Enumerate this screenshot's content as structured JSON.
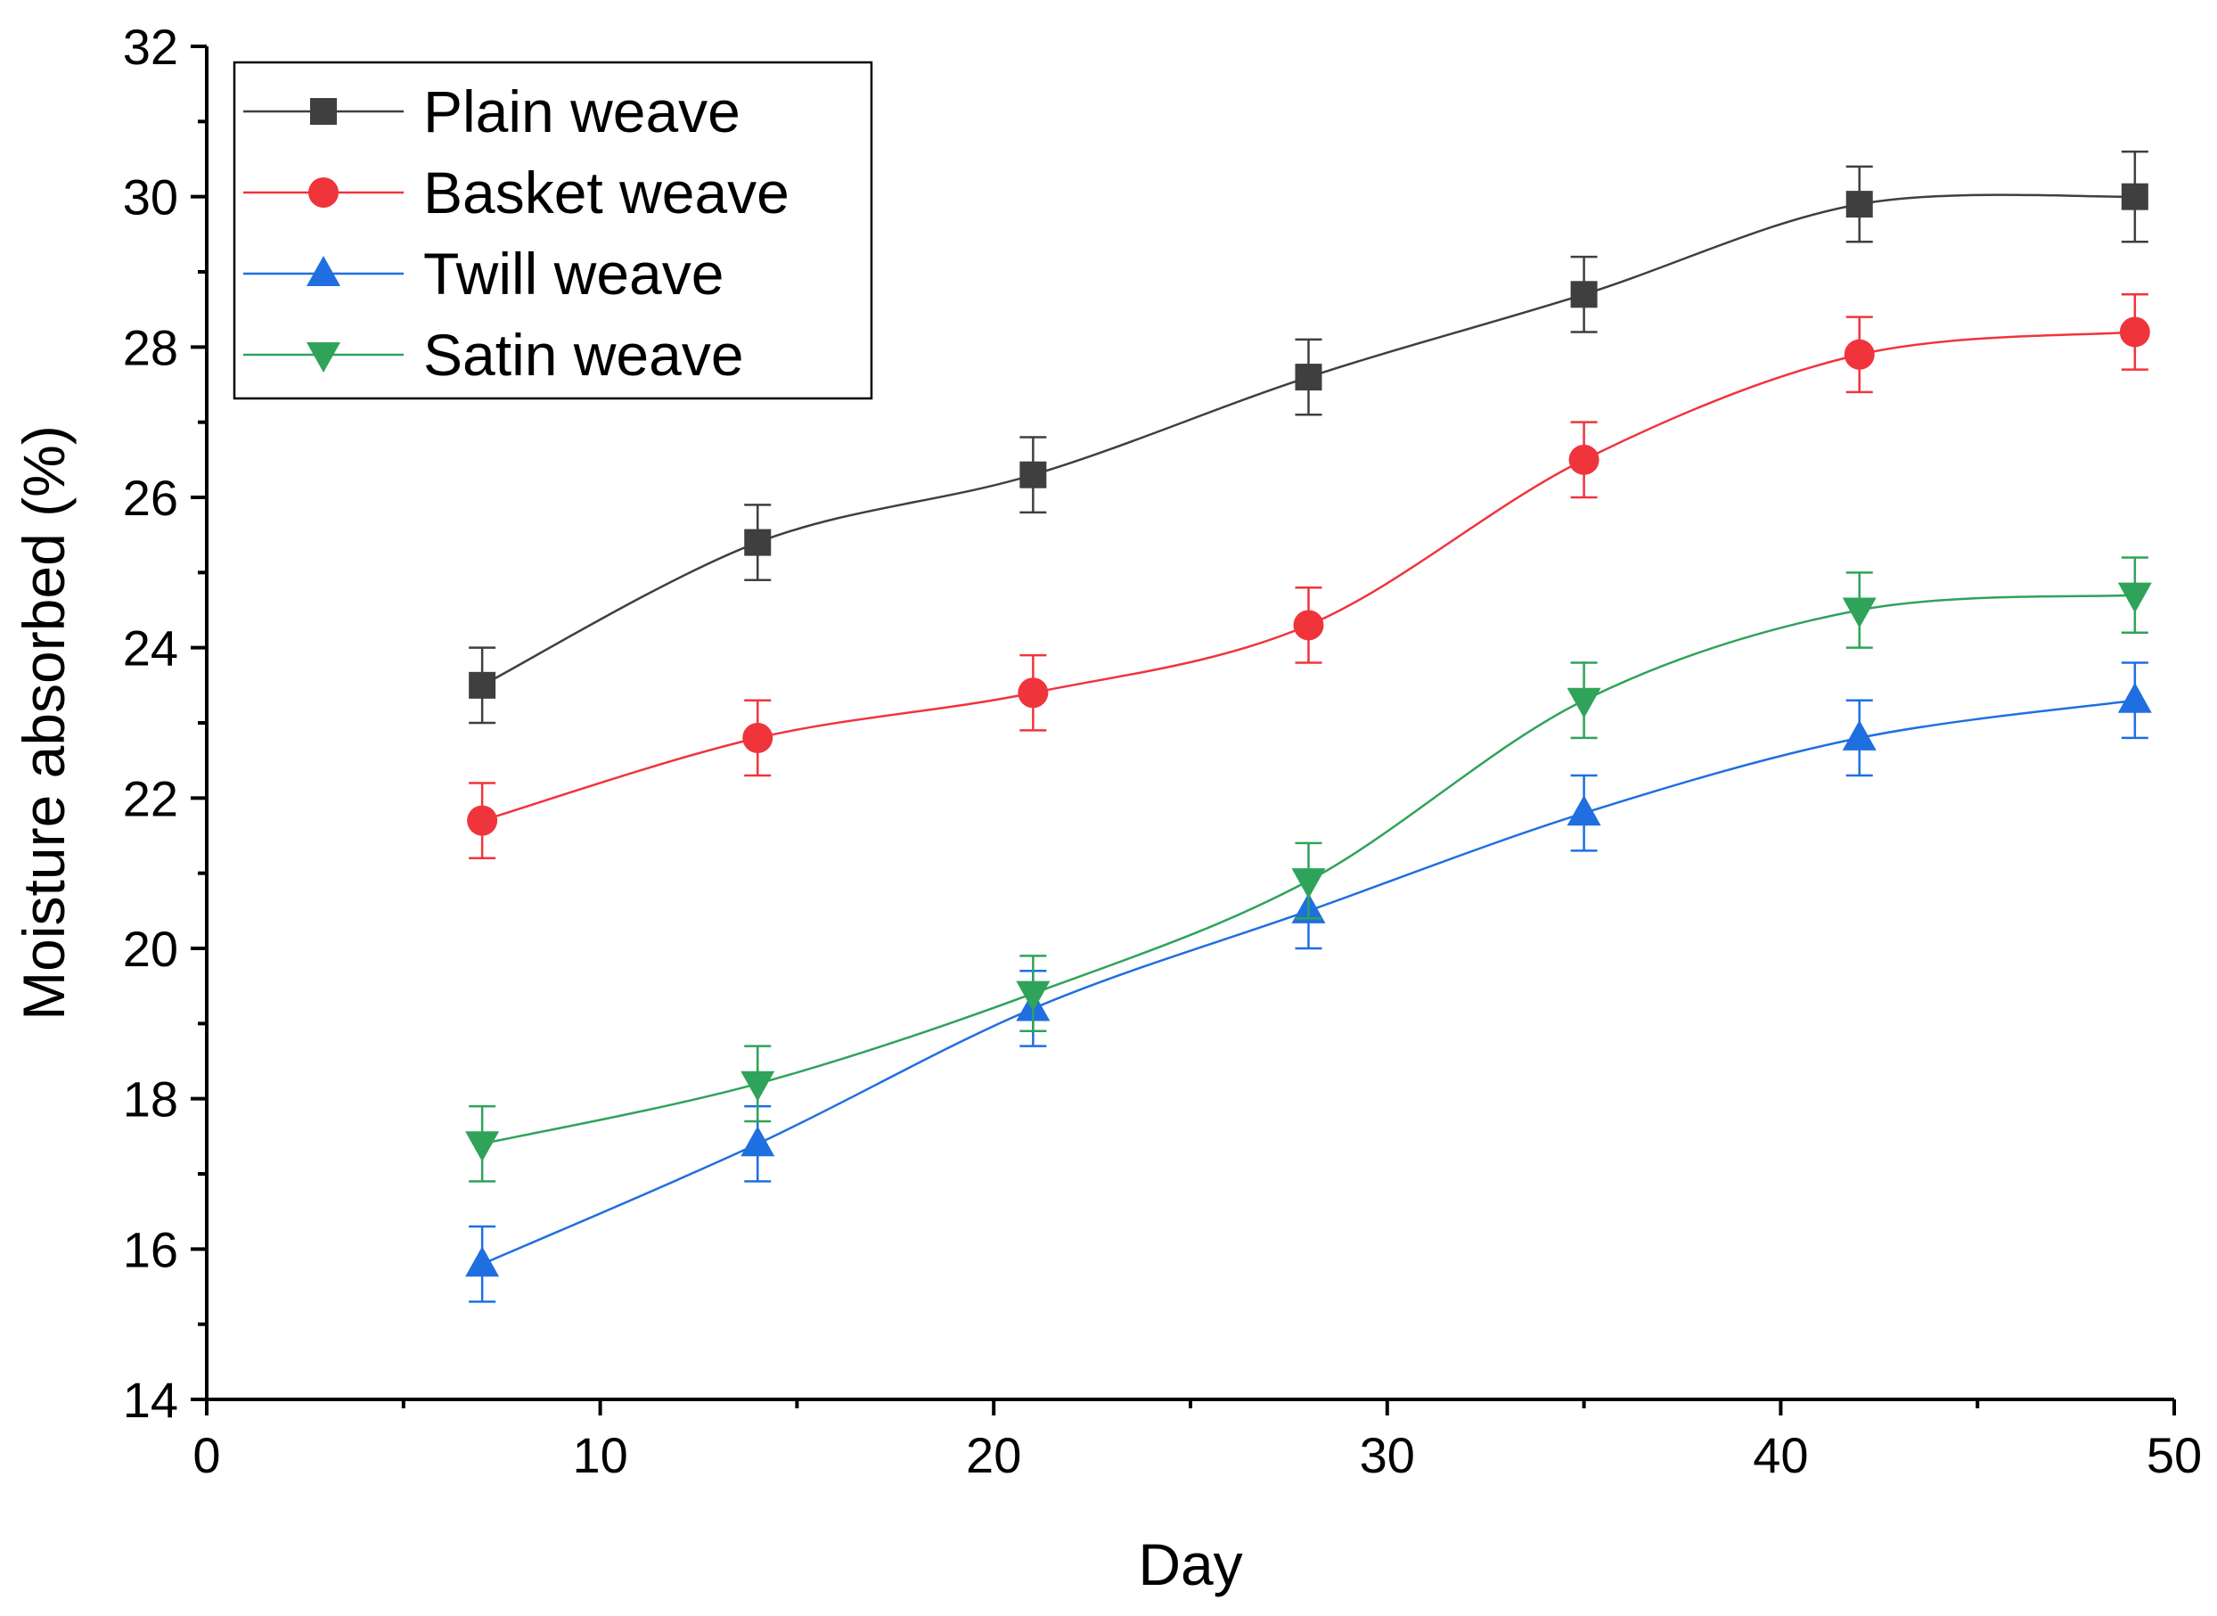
{
  "chart_data": {
    "type": "line",
    "title": "",
    "xlabel": "Day",
    "ylabel": "Moisture absorbed (%)",
    "xlim": [
      0,
      50
    ],
    "ylim": [
      14,
      32
    ],
    "xticks": [
      0,
      10,
      20,
      30,
      40,
      50
    ],
    "yticks": [
      14,
      16,
      18,
      20,
      22,
      24,
      26,
      28,
      30,
      32
    ],
    "x_minor_step": 5,
    "y_minor_step": 1,
    "grid": false,
    "legend_position": "top-left",
    "x": [
      7,
      14,
      21,
      28,
      35,
      42,
      49
    ],
    "series": [
      {
        "name": "Plain weave",
        "color": "#3f3f3f",
        "marker": "square",
        "values": [
          23.5,
          25.4,
          26.3,
          27.6,
          28.7,
          29.9,
          30.0
        ],
        "errors": [
          0.5,
          0.5,
          0.5,
          0.5,
          0.5,
          0.5,
          0.6
        ]
      },
      {
        "name": "Basket weave",
        "color": "#f0343c",
        "marker": "circle",
        "values": [
          21.7,
          22.8,
          23.4,
          24.3,
          26.5,
          27.9,
          28.2
        ],
        "errors": [
          0.5,
          0.5,
          0.5,
          0.5,
          0.5,
          0.5,
          0.5
        ]
      },
      {
        "name": "Twill weave",
        "color": "#1f6fe0",
        "marker": "triangle-up",
        "values": [
          15.8,
          17.4,
          19.2,
          20.5,
          21.8,
          22.8,
          23.3
        ],
        "errors": [
          0.5,
          0.5,
          0.5,
          0.5,
          0.5,
          0.5,
          0.5
        ]
      },
      {
        "name": "Satin weave",
        "color": "#2fa35a",
        "marker": "triangle-down",
        "values": [
          17.4,
          18.2,
          19.4,
          20.9,
          23.3,
          24.5,
          24.7
        ],
        "errors": [
          0.5,
          0.5,
          0.5,
          0.5,
          0.5,
          0.5,
          0.5
        ]
      }
    ]
  }
}
